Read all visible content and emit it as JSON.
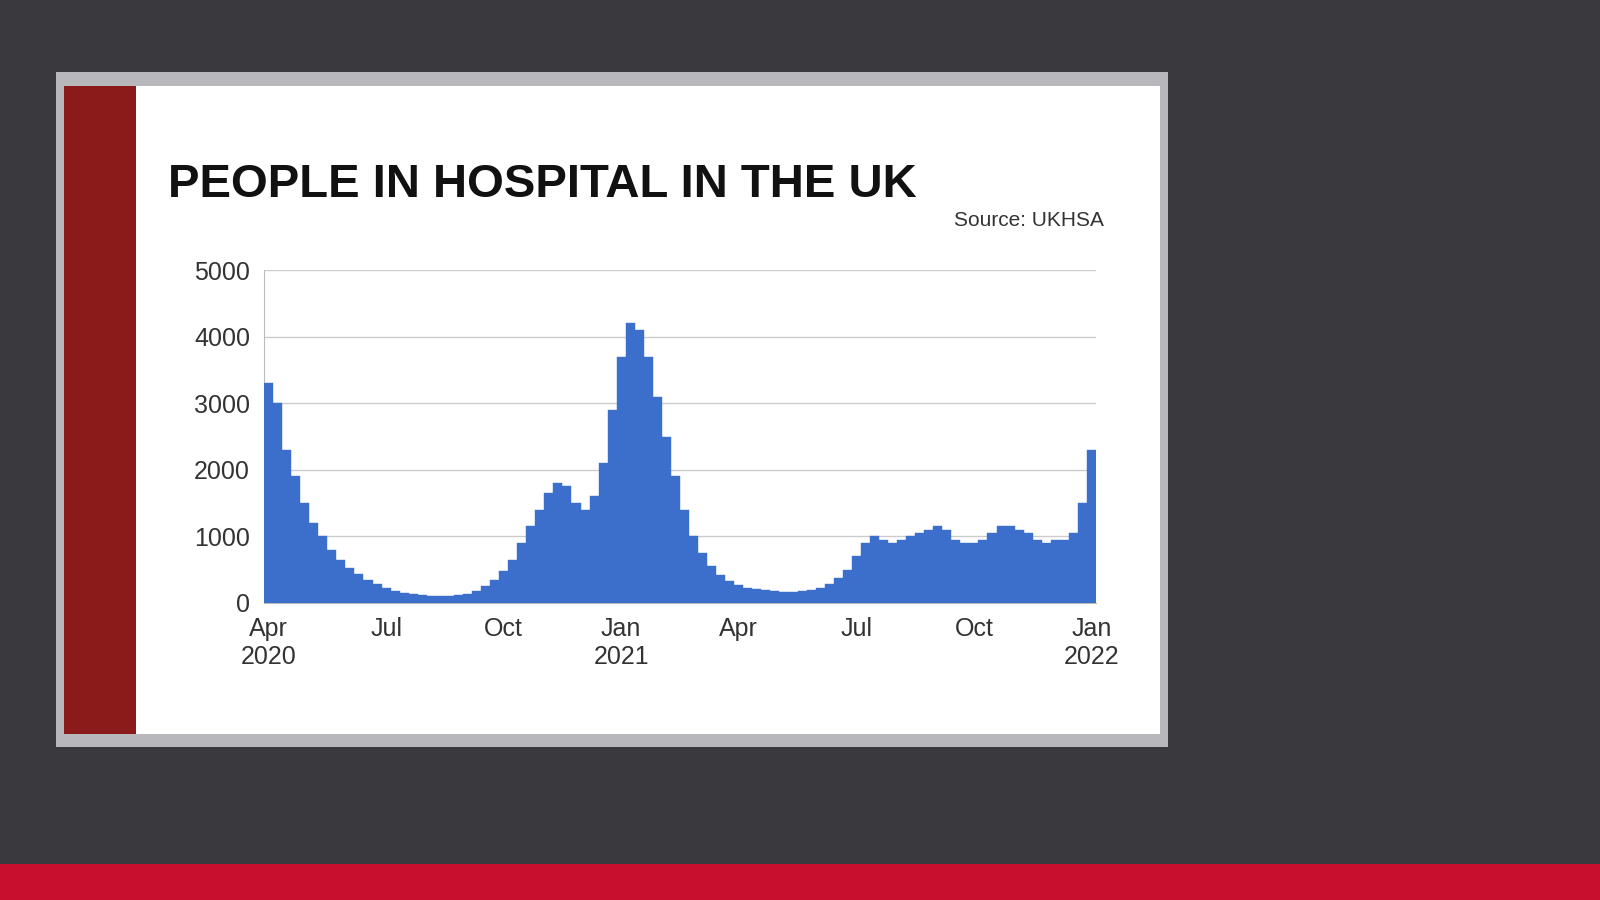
{
  "chart_data": {
    "type": "bar",
    "title": "PEOPLE IN HOSPITAL IN THE UK",
    "subtitle": "Source: UKHSA",
    "categories": [
      "Apr\n2020",
      null,
      null,
      null,
      null,
      null,
      null,
      null,
      null,
      null,
      null,
      null,
      null,
      "Jul",
      null,
      null,
      null,
      null,
      null,
      null,
      null,
      null,
      null,
      null,
      null,
      null,
      "Oct",
      null,
      null,
      null,
      null,
      null,
      null,
      null,
      null,
      null,
      null,
      null,
      null,
      "Jan\n2021",
      null,
      null,
      null,
      null,
      null,
      null,
      null,
      null,
      null,
      null,
      null,
      null,
      "Apr",
      null,
      null,
      null,
      null,
      null,
      null,
      null,
      null,
      null,
      null,
      null,
      null,
      "Jul",
      null,
      null,
      null,
      null,
      null,
      null,
      null,
      null,
      null,
      null,
      null,
      null,
      "Oct",
      null,
      null,
      null,
      null,
      null,
      null,
      null,
      null,
      null,
      null,
      null,
      null,
      "Jan\n2022"
    ],
    "values": [
      3300,
      3000,
      2300,
      1900,
      1500,
      1200,
      1000,
      800,
      650,
      520,
      430,
      350,
      290,
      230,
      180,
      150,
      130,
      120,
      110,
      110,
      110,
      120,
      140,
      180,
      250,
      350,
      480,
      650,
      900,
      1150,
      1400,
      1650,
      1800,
      1750,
      1500,
      1400,
      1600,
      2100,
      2900,
      3700,
      4200,
      4100,
      3700,
      3100,
      2500,
      1900,
      1400,
      1000,
      750,
      550,
      420,
      330,
      270,
      230,
      210,
      190,
      180,
      170,
      170,
      180,
      200,
      230,
      280,
      380,
      500,
      700,
      900,
      1000,
      950,
      900,
      950,
      1000,
      1050,
      1100,
      1150,
      1100,
      950,
      900,
      900,
      950,
      1050,
      1150,
      1150,
      1100,
      1050,
      950,
      900,
      950,
      950,
      1050,
      1500,
      2300
    ],
    "color": "#3b6fcb",
    "ylim": [
      0,
      5000
    ],
    "yticks": [
      0,
      1000,
      2000,
      3000,
      4000,
      5000
    ],
    "grid": true
  }
}
